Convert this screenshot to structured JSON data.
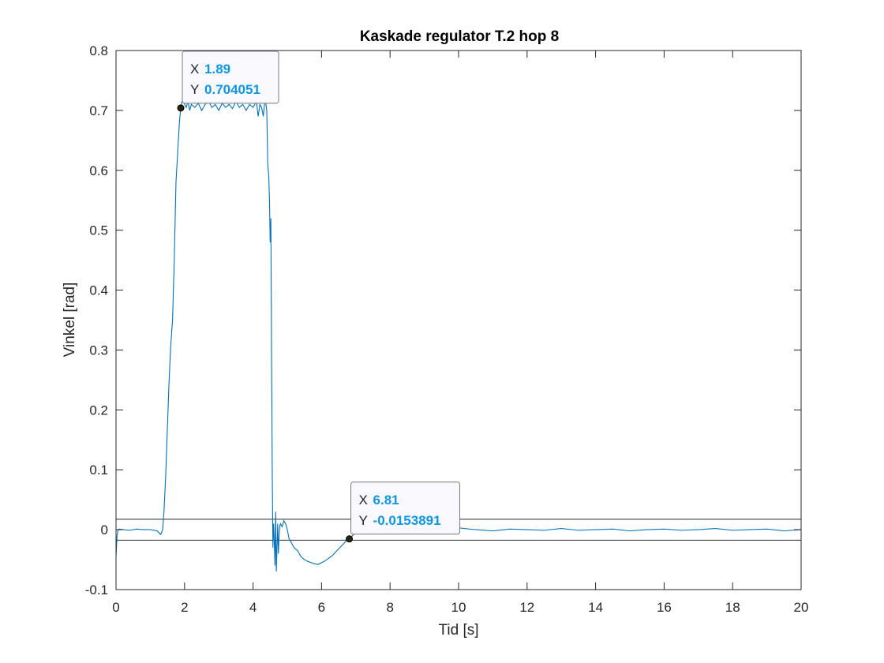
{
  "chart_data": {
    "type": "line",
    "title": "Kaskade regulator T.2 hop 8",
    "xlabel": "Tid [s]",
    "ylabel": "Vinkel [rad]",
    "xlim": [
      0,
      20
    ],
    "ylim": [
      -0.1,
      0.8
    ],
    "xticks": [
      0,
      2,
      4,
      6,
      8,
      10,
      12,
      14,
      16,
      18,
      20
    ],
    "yticks": [
      -0.1,
      0,
      0.1,
      0.2,
      0.3,
      0.4,
      0.5,
      0.6,
      0.7,
      0.8
    ],
    "yticklabels": [
      "-0.1",
      "0",
      "0.1",
      "0.2",
      "0.3",
      "0.4",
      "0.5",
      "0.6",
      "0.7",
      "0.8"
    ],
    "grid": false,
    "colors": {
      "series": "#0072bd",
      "reference": "#262626",
      "datatip_value": "#0d97e6"
    },
    "series": [
      {
        "x": [
          0,
          0.03,
          0.06,
          0.1,
          0.2,
          0.4,
          0.6,
          0.8,
          1.0,
          1.2,
          1.3,
          1.33,
          1.36,
          1.4,
          1.45,
          1.5,
          1.55,
          1.6,
          1.65,
          1.7,
          1.75,
          1.8,
          1.85,
          1.89,
          1.95,
          2.0,
          2.05,
          2.1,
          2.15,
          2.2,
          2.3,
          2.4,
          2.5,
          2.6,
          2.7,
          2.8,
          2.9,
          3.0,
          3.1,
          3.2,
          3.3,
          3.4,
          3.5,
          3.6,
          3.7,
          3.8,
          3.9,
          4.0,
          4.1,
          4.15,
          4.2,
          4.25,
          4.3,
          4.35,
          4.4,
          4.43,
          4.46,
          4.48,
          4.5,
          4.52,
          4.54,
          4.56,
          4.58,
          4.6,
          4.62,
          4.64,
          4.66,
          4.68,
          4.7,
          4.72,
          4.74,
          4.76,
          4.78,
          4.8,
          4.85,
          4.9,
          4.95,
          5.0,
          5.05,
          5.1,
          5.2,
          5.3,
          5.4,
          5.5,
          5.6,
          5.7,
          5.8,
          5.9,
          6.0,
          6.1,
          6.2,
          6.3,
          6.4,
          6.5,
          6.6,
          6.7,
          6.81,
          6.9,
          7.0,
          7.2,
          7.5,
          7.8,
          8.0,
          8.2,
          8.4,
          8.6,
          8.8,
          9.0,
          9.2,
          9.5,
          10.0,
          10.5,
          11.0,
          11.5,
          12.0,
          12.5,
          13.0,
          13.5,
          14.0,
          14.5,
          15.0,
          15.5,
          16.0,
          16.5,
          17.0,
          17.5,
          18.0,
          18.5,
          19.0,
          19.5,
          20.0
        ],
        "y": [
          -0.045,
          -0.01,
          0.0,
          0.001,
          0.0,
          -0.001,
          0.001,
          0.0,
          0.0,
          -0.002,
          -0.008,
          -0.005,
          0.0,
          0.03,
          0.09,
          0.17,
          0.25,
          0.31,
          0.35,
          0.45,
          0.58,
          0.63,
          0.68,
          0.704,
          0.72,
          0.71,
          0.705,
          0.715,
          0.7,
          0.71,
          0.705,
          0.712,
          0.7,
          0.71,
          0.715,
          0.705,
          0.71,
          0.7,
          0.712,
          0.705,
          0.71,
          0.703,
          0.715,
          0.705,
          0.71,
          0.7,
          0.71,
          0.705,
          0.715,
          0.69,
          0.71,
          0.705,
          0.69,
          0.72,
          0.7,
          0.61,
          0.59,
          0.55,
          0.48,
          0.52,
          0.3,
          0.1,
          -0.03,
          0.01,
          -0.02,
          -0.06,
          0.03,
          -0.07,
          -0.03,
          0.01,
          -0.04,
          -0.01,
          0.005,
          0.01,
          0.005,
          0.015,
          0.01,
          0.0,
          -0.015,
          -0.02,
          -0.03,
          -0.035,
          -0.045,
          -0.05,
          -0.053,
          -0.055,
          -0.057,
          -0.058,
          -0.055,
          -0.052,
          -0.048,
          -0.044,
          -0.038,
          -0.032,
          -0.026,
          -0.02,
          -0.0153891,
          -0.01,
          -0.005,
          0.0,
          0.002,
          0.0,
          0.001,
          -0.002,
          0.001,
          0.0,
          -0.002,
          0.001,
          0.0,
          -0.001,
          0.003,
          0.0,
          -0.002,
          0.001,
          0.0,
          -0.001,
          0.002,
          -0.001,
          0.0,
          0.001,
          -0.002,
          0.0,
          0.001,
          -0.001,
          0.0,
          0.002,
          -0.001,
          0.0,
          0.001,
          -0.002,
          0.0
        ]
      }
    ],
    "reference_lines": [
      0.0175,
      -0.0175
    ],
    "datatips": [
      {
        "x": 1.89,
        "y": 0.704051,
        "x_label": "X",
        "y_label": "Y",
        "x_text": "1.89",
        "y_text": "0.704051"
      },
      {
        "x": 6.81,
        "y": -0.0153891,
        "x_label": "X",
        "y_label": "Y",
        "x_text": "6.81",
        "y_text": "-0.0153891"
      }
    ]
  }
}
